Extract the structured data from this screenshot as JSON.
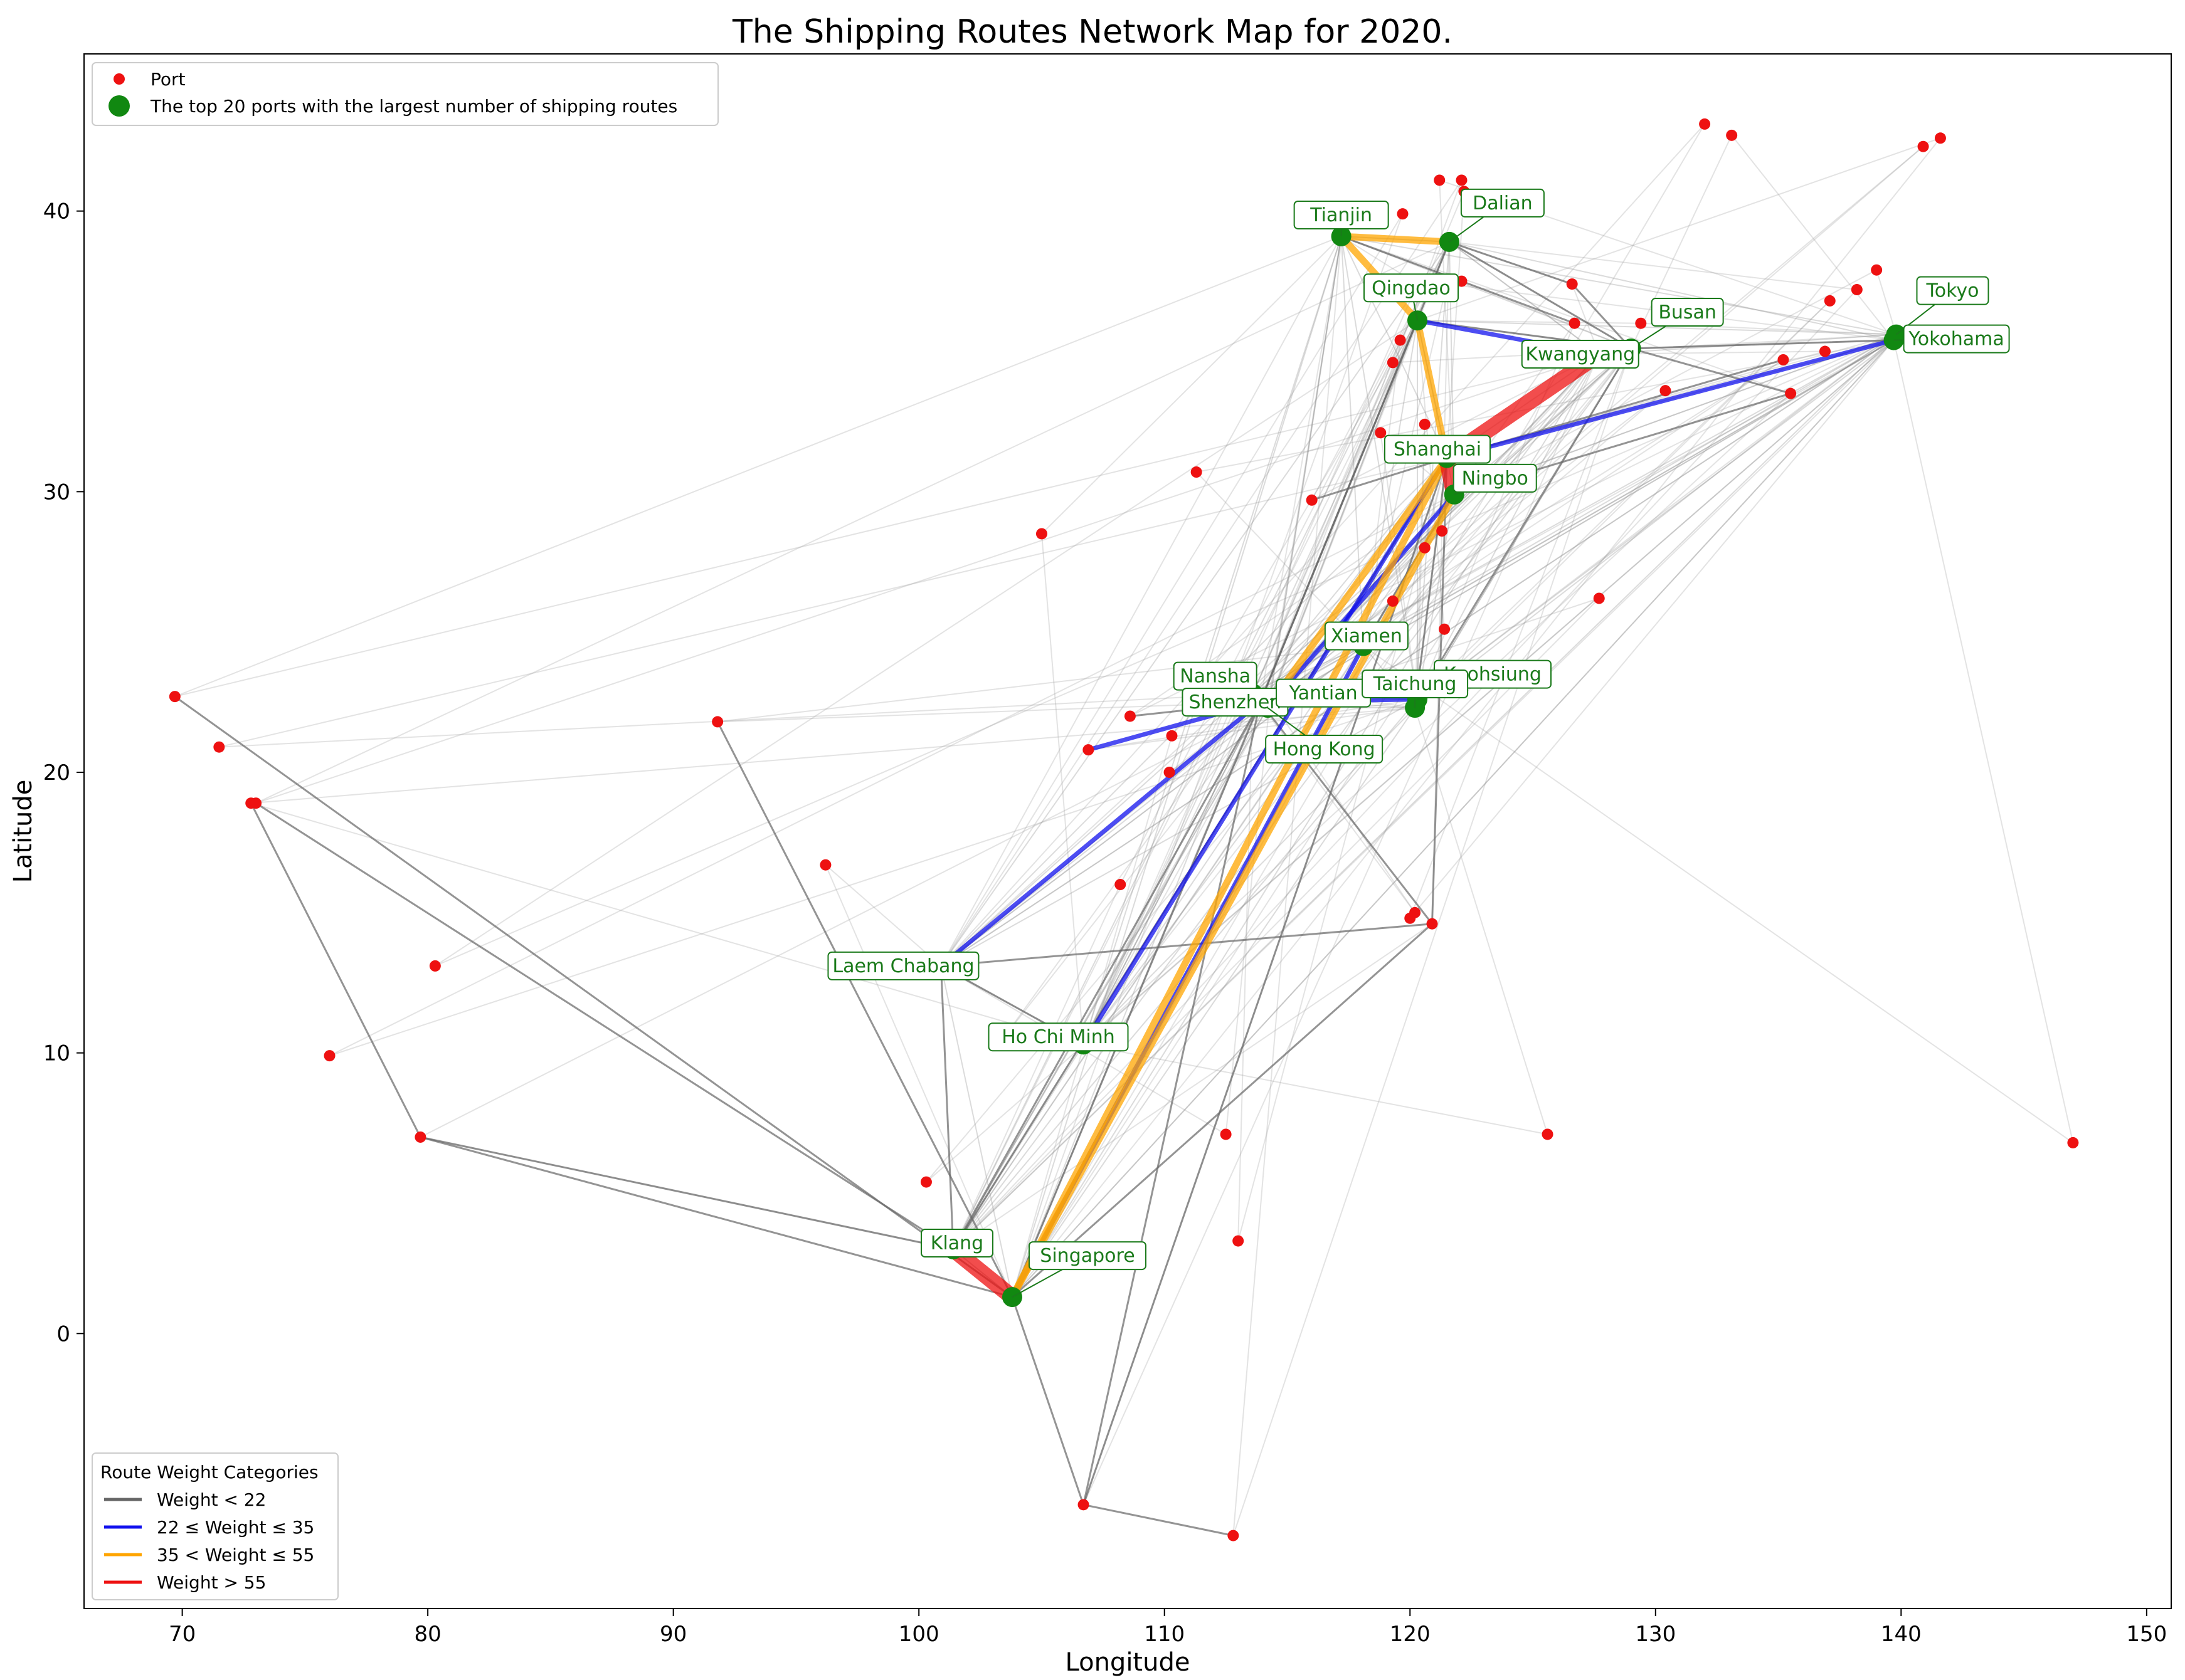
{
  "chart_data": {
    "type": "scatter",
    "title": "The Shipping Routes Network Map for 2020.",
    "xlabel": "Longitude",
    "ylabel": "Latitude",
    "xlim": [
      66,
      151
    ],
    "ylim": [
      -9.8,
      45.6
    ],
    "xticks": [
      70,
      80,
      90,
      100,
      110,
      120,
      130,
      140,
      150
    ],
    "yticks": [
      0,
      10,
      20,
      30,
      40
    ],
    "grid": false,
    "legend_top": {
      "placement": "top-left",
      "entries": [
        {
          "label": "Port",
          "marker": "small-dot",
          "color": "#ee1111"
        },
        {
          "label": "The top 20 ports with the largest number of shipping routes",
          "marker": "large-dot",
          "color": "#118811"
        }
      ]
    },
    "legend_weights": {
      "placement": "bottom-left",
      "title": "Route Weight Categories",
      "entries": [
        {
          "label": "Weight < 22",
          "color": "#666666"
        },
        {
          "label": "22 ≤ Weight ≤ 35",
          "color": "#1111ee"
        },
        {
          "label": "35 < Weight ≤ 55",
          "color": "#ffa500"
        },
        {
          "label": "Weight > 55",
          "color": "#ee1111"
        }
      ]
    },
    "top_ports": [
      {
        "name": "Tianjin",
        "lon": 117.2,
        "lat": 39.1
      },
      {
        "name": "Dalian",
        "lon": 121.6,
        "lat": 38.9
      },
      {
        "name": "Qingdao",
        "lon": 120.3,
        "lat": 36.1
      },
      {
        "name": "Busan",
        "lon": 129.0,
        "lat": 35.1
      },
      {
        "name": "Kwangyang",
        "lon": 127.7,
        "lat": 34.9
      },
      {
        "name": "Tokyo",
        "lon": 139.8,
        "lat": 35.6
      },
      {
        "name": "Yokohama",
        "lon": 139.7,
        "lat": 35.4
      },
      {
        "name": "Shanghai",
        "lon": 121.5,
        "lat": 31.2
      },
      {
        "name": "Ningbo",
        "lon": 121.8,
        "lat": 29.9
      },
      {
        "name": "Xiamen",
        "lon": 118.1,
        "lat": 24.5
      },
      {
        "name": "Nansha",
        "lon": 113.6,
        "lat": 22.8
      },
      {
        "name": "Kaohsiung",
        "lon": 120.3,
        "lat": 22.6
      },
      {
        "name": "Shenzhen",
        "lon": 113.9,
        "lat": 22.5
      },
      {
        "name": "Yantian",
        "lon": 114.3,
        "lat": 22.6
      },
      {
        "name": "Taichung",
        "lon": 120.2,
        "lat": 22.3
      },
      {
        "name": "Hong Kong",
        "lon": 114.2,
        "lat": 22.3
      },
      {
        "name": "Laem Chabang",
        "lon": 100.9,
        "lat": 13.1
      },
      {
        "name": "Ho Chi Minh",
        "lon": 106.7,
        "lat": 10.3
      },
      {
        "name": "Klang",
        "lon": 101.4,
        "lat": 3.0
      },
      {
        "name": "Singapore",
        "lon": 103.8,
        "lat": 1.3
      }
    ],
    "ports": [
      [
        69.7,
        22.7
      ],
      [
        71.5,
        20.9
      ],
      [
        72.8,
        18.9
      ],
      [
        73.0,
        18.9
      ],
      [
        76.0,
        9.9
      ],
      [
        79.7,
        7.0
      ],
      [
        80.3,
        13.1
      ],
      [
        91.8,
        21.8
      ],
      [
        96.2,
        16.7
      ],
      [
        100.3,
        5.4
      ],
      [
        103.5,
        10.6
      ],
      [
        105.0,
        28.5
      ],
      [
        106.7,
        -6.1
      ],
      [
        106.9,
        20.8
      ],
      [
        108.2,
        16.0
      ],
      [
        108.6,
        22.0
      ],
      [
        110.2,
        20.0
      ],
      [
        110.3,
        21.3
      ],
      [
        111.3,
        30.7
      ],
      [
        112.5,
        7.1
      ],
      [
        112.8,
        -7.2
      ],
      [
        113.0,
        3.3
      ],
      [
        113.3,
        23.1
      ],
      [
        116.0,
        29.7
      ],
      [
        118.8,
        32.1
      ],
      [
        119.3,
        26.1
      ],
      [
        119.3,
        34.6
      ],
      [
        119.6,
        35.4
      ],
      [
        119.7,
        39.9
      ],
      [
        120.0,
        14.8
      ],
      [
        120.2,
        15.0
      ],
      [
        120.3,
        37.4
      ],
      [
        120.6,
        28.0
      ],
      [
        120.6,
        32.4
      ],
      [
        120.9,
        14.6
      ],
      [
        121.2,
        41.1
      ],
      [
        121.3,
        28.6
      ],
      [
        121.4,
        25.1
      ],
      [
        121.5,
        37.4
      ],
      [
        122.1,
        41.1
      ],
      [
        122.1,
        37.5
      ],
      [
        122.2,
        40.7
      ],
      [
        125.6,
        7.1
      ],
      [
        126.6,
        37.4
      ],
      [
        126.7,
        36.0
      ],
      [
        127.7,
        26.2
      ],
      [
        129.4,
        36.0
      ],
      [
        130.4,
        33.6
      ],
      [
        132.0,
        43.1
      ],
      [
        133.1,
        42.7
      ],
      [
        135.2,
        34.7
      ],
      [
        135.5,
        33.5
      ],
      [
        136.9,
        35.0
      ],
      [
        137.1,
        36.8
      ],
      [
        138.2,
        37.2
      ],
      [
        139.0,
        37.9
      ],
      [
        140.9,
        42.3
      ],
      [
        141.6,
        42.6
      ],
      [
        147.0,
        6.8
      ]
    ],
    "routes": [
      {
        "from": [
          103.8,
          1.3
        ],
        "to": [
          101.4,
          3.0
        ],
        "category": "Weight > 55"
      },
      {
        "from": [
          121.5,
          31.2
        ],
        "to": [
          127.7,
          34.9
        ],
        "category": "Weight > 55"
      },
      {
        "from": [
          121.5,
          31.2
        ],
        "to": [
          121.8,
          29.9
        ],
        "category": "Weight > 55"
      },
      {
        "from": [
          103.8,
          1.3
        ],
        "to": [
          121.5,
          31.2
        ],
        "category": "35 < Weight ≤ 55"
      },
      {
        "from": [
          103.8,
          1.3
        ],
        "to": [
          121.8,
          29.9
        ],
        "category": "35 < Weight ≤ 55"
      },
      {
        "from": [
          117.2,
          39.1
        ],
        "to": [
          121.6,
          38.9
        ],
        "category": "35 < Weight ≤ 55"
      },
      {
        "from": [
          117.2,
          39.1
        ],
        "to": [
          120.3,
          36.1
        ],
        "category": "35 < Weight ≤ 55"
      },
      {
        "from": [
          120.3,
          36.1
        ],
        "to": [
          121.5,
          31.2
        ],
        "category": "35 < Weight ≤ 55"
      },
      {
        "from": [
          114.2,
          22.3
        ],
        "to": [
          121.5,
          31.2
        ],
        "category": "35 < Weight ≤ 55"
      },
      {
        "from": [
          103.8,
          1.3
        ],
        "to": [
          118.1,
          24.5
        ],
        "category": "22 ≤ Weight ≤ 35"
      },
      {
        "from": [
          100.9,
          13.1
        ],
        "to": [
          113.9,
          22.5
        ],
        "category": "22 ≤ Weight ≤ 35"
      },
      {
        "from": [
          106.9,
          20.8
        ],
        "to": [
          113.9,
          22.5
        ],
        "category": "22 ≤ Weight ≤ 35"
      },
      {
        "from": [
          106.7,
          10.3
        ],
        "to": [
          121.5,
          31.2
        ],
        "category": "22 ≤ Weight ≤ 35"
      },
      {
        "from": [
          121.5,
          31.2
        ],
        "to": [
          139.7,
          35.4
        ],
        "category": "22 ≤ Weight ≤ 35"
      },
      {
        "from": [
          120.3,
          36.1
        ],
        "to": [
          127.7,
          34.9
        ],
        "category": "22 ≤ Weight ≤ 35"
      },
      {
        "from": [
          114.2,
          22.3
        ],
        "to": [
          121.8,
          29.9
        ],
        "category": "22 ≤ Weight ≤ 35"
      },
      {
        "from": [
          113.9,
          22.5
        ],
        "to": [
          120.3,
          22.6
        ],
        "category": "22 ≤ Weight ≤ 35"
      },
      {
        "from": [
          69.7,
          22.7
        ],
        "to": [
          103.8,
          1.3
        ],
        "category": "Weight < 22"
      },
      {
        "from": [
          72.8,
          18.9
        ],
        "to": [
          79.7,
          7.0
        ],
        "category": "Weight < 22"
      },
      {
        "from": [
          79.7,
          7.0
        ],
        "to": [
          101.4,
          3.0
        ],
        "category": "Weight < 22"
      },
      {
        "from": [
          79.7,
          7.0
        ],
        "to": [
          103.8,
          1.3
        ],
        "category": "Weight < 22"
      },
      {
        "from": [
          73.0,
          18.9
        ],
        "to": [
          101.4,
          3.0
        ],
        "category": "Weight < 22"
      },
      {
        "from": [
          91.8,
          21.8
        ],
        "to": [
          103.8,
          1.3
        ],
        "category": "Weight < 22"
      },
      {
        "from": [
          100.9,
          13.1
        ],
        "to": [
          106.7,
          10.3
        ],
        "category": "Weight < 22"
      },
      {
        "from": [
          100.9,
          13.1
        ],
        "to": [
          120.9,
          14.6
        ],
        "category": "Weight < 22"
      },
      {
        "from": [
          100.9,
          13.1
        ],
        "to": [
          101.4,
          3.0
        ],
        "category": "Weight < 22"
      },
      {
        "from": [
          106.7,
          -6.1
        ],
        "to": [
          103.8,
          1.3
        ],
        "category": "Weight < 22"
      },
      {
        "from": [
          106.7,
          -6.1
        ],
        "to": [
          113.9,
          22.5
        ],
        "category": "Weight < 22"
      },
      {
        "from": [
          106.7,
          -6.1
        ],
        "to": [
          121.5,
          31.2
        ],
        "category": "Weight < 22"
      },
      {
        "from": [
          106.7,
          -6.1
        ],
        "to": [
          112.8,
          -7.2
        ],
        "category": "Weight < 22"
      },
      {
        "from": [
          103.8,
          1.3
        ],
        "to": [
          113.9,
          22.5
        ],
        "category": "Weight < 22"
      },
      {
        "from": [
          103.8,
          1.3
        ],
        "to": [
          120.9,
          14.6
        ],
        "category": "Weight < 22"
      },
      {
        "from": [
          101.4,
          3.0
        ],
        "to": [
          113.9,
          22.5
        ],
        "category": "Weight < 22"
      },
      {
        "from": [
          101.4,
          3.0
        ],
        "to": [
          121.5,
          31.2
        ],
        "category": "Weight < 22"
      },
      {
        "from": [
          120.9,
          14.6
        ],
        "to": [
          121.5,
          31.2
        ],
        "category": "Weight < 22"
      },
      {
        "from": [
          120.9,
          14.6
        ],
        "to": [
          113.9,
          22.5
        ],
        "category": "Weight < 22"
      },
      {
        "from": [
          116.0,
          29.7
        ],
        "to": [
          121.5,
          31.2
        ],
        "category": "Weight < 22"
      },
      {
        "from": [
          121.6,
          38.9
        ],
        "to": [
          129.0,
          35.1
        ],
        "category": "Weight < 22"
      },
      {
        "from": [
          121.6,
          38.9
        ],
        "to": [
          126.6,
          37.4
        ],
        "category": "Weight < 22"
      },
      {
        "from": [
          117.2,
          39.1
        ],
        "to": [
          126.7,
          36.0
        ],
        "category": "Weight < 22"
      },
      {
        "from": [
          126.6,
          37.4
        ],
        "to": [
          129.0,
          35.1
        ],
        "category": "Weight < 22"
      },
      {
        "from": [
          129.0,
          35.1
        ],
        "to": [
          139.7,
          35.4
        ],
        "category": "Weight < 22"
      },
      {
        "from": [
          121.5,
          31.2
        ],
        "to": [
          135.2,
          34.7
        ],
        "category": "Weight < 22"
      },
      {
        "from": [
          120.3,
          36.1
        ],
        "to": [
          113.9,
          22.5
        ],
        "category": "Weight < 22"
      },
      {
        "from": [
          121.6,
          38.9
        ],
        "to": [
          113.9,
          22.5
        ],
        "category": "Weight < 22"
      },
      {
        "from": [
          118.1,
          24.5
        ],
        "to": [
          121.8,
          29.9
        ],
        "category": "Weight < 22"
      },
      {
        "from": [
          120.3,
          22.6
        ],
        "to": [
          129.0,
          35.1
        ],
        "category": "Weight < 22"
      },
      {
        "from": [
          120.2,
          22.3
        ],
        "to": [
          121.5,
          31.2
        ],
        "category": "Weight < 22"
      },
      {
        "from": [
          121.8,
          29.9
        ],
        "to": [
          135.5,
          33.5
        ],
        "category": "Weight < 22"
      },
      {
        "from": [
          129.0,
          35.1
        ],
        "to": [
          135.5,
          33.5
        ],
        "category": "Weight < 22"
      },
      {
        "from": [
          120.3,
          36.1
        ],
        "to": [
          129.0,
          35.1
        ],
        "category": "Weight < 22"
      },
      {
        "from": [
          108.6,
          22.0
        ],
        "to": [
          113.9,
          22.5
        ],
        "category": "Weight < 22"
      }
    ]
  }
}
